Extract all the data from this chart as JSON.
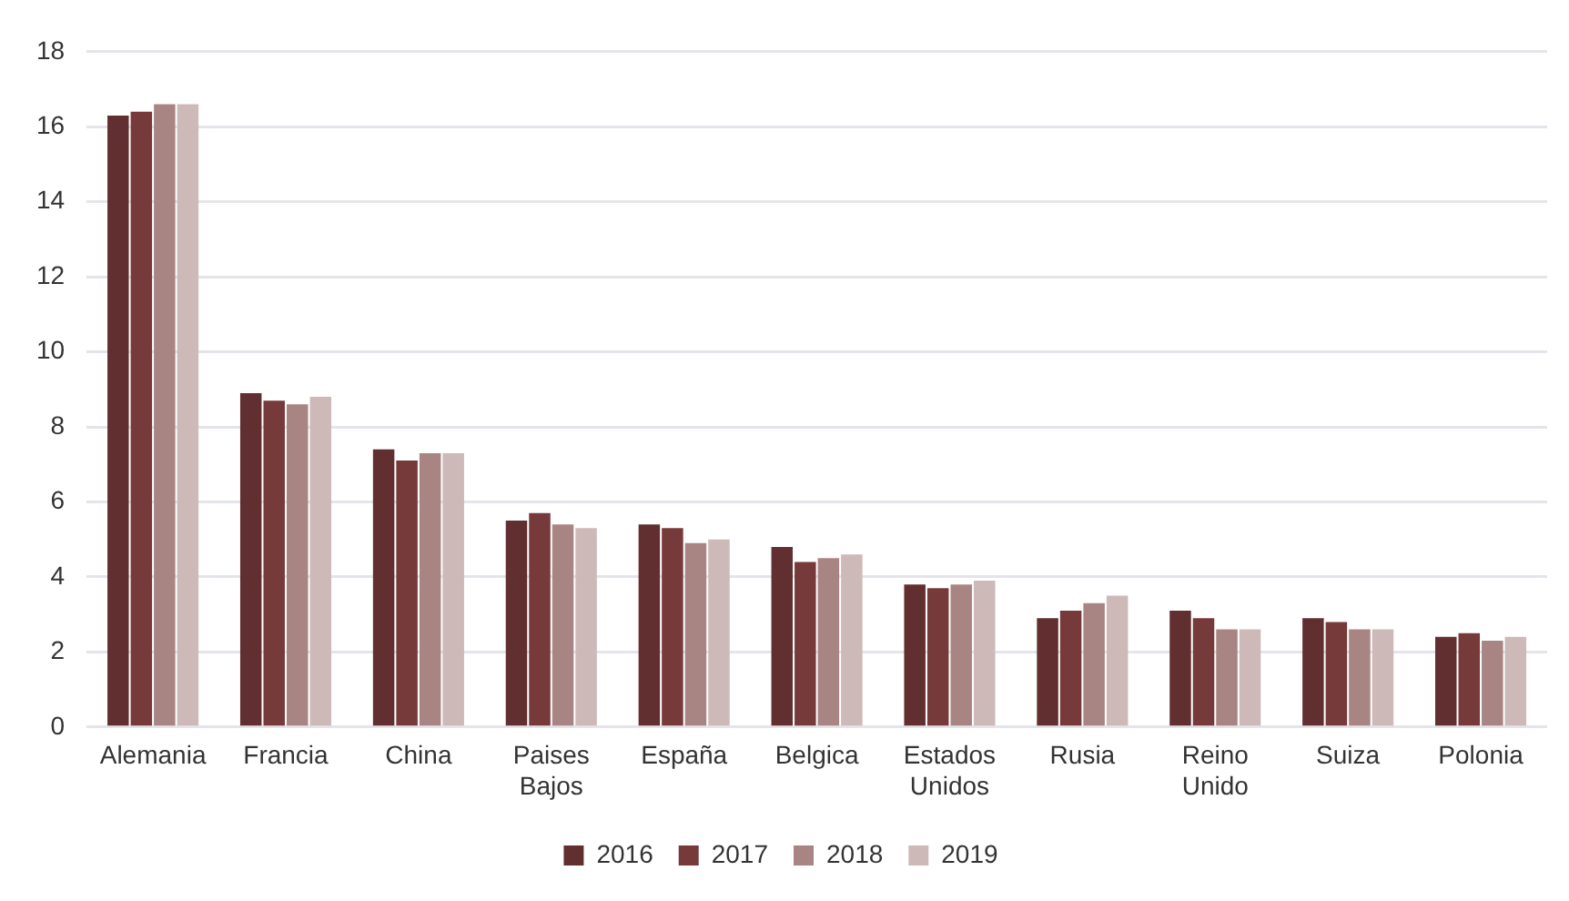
{
  "chart_data": {
    "type": "bar",
    "categories": [
      "Alemania",
      "Francia",
      "China",
      "Paises Bajos",
      "España",
      "Belgica",
      "Estados Unidos",
      "Rusia",
      "Reino Unido",
      "Suiza",
      "Polonia"
    ],
    "series": [
      {
        "name": "2016",
        "color": "#622f30",
        "values": [
          16.3,
          8.9,
          7.4,
          5.5,
          5.4,
          4.8,
          3.8,
          2.9,
          3.1,
          2.9,
          2.4
        ]
      },
      {
        "name": "2017",
        "color": "#773a3b",
        "values": [
          16.4,
          8.7,
          7.1,
          5.7,
          5.3,
          4.4,
          3.7,
          3.1,
          2.9,
          2.8,
          2.5
        ]
      },
      {
        "name": "2018",
        "color": "#a88583",
        "values": [
          16.6,
          8.6,
          7.3,
          5.4,
          4.9,
          4.5,
          3.8,
          3.3,
          2.6,
          2.6,
          2.3
        ]
      },
      {
        "name": "2019",
        "color": "#cdb9b8",
        "values": [
          16.6,
          8.8,
          7.3,
          5.3,
          5.0,
          4.6,
          3.9,
          3.5,
          2.6,
          2.6,
          2.4
        ]
      }
    ],
    "ylim": [
      0,
      18
    ],
    "yticks": [
      0,
      2,
      4,
      6,
      8,
      10,
      12,
      14,
      16,
      18
    ],
    "grid": "y",
    "legend": "bottom"
  }
}
